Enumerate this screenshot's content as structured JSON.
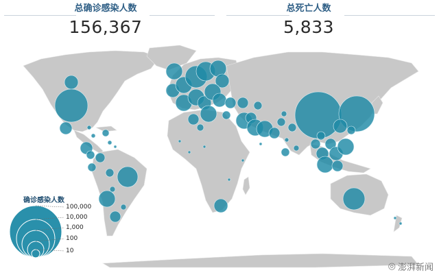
{
  "header": {
    "confirmed_label": "总确诊感染人数",
    "confirmed_value": "156,367",
    "deaths_label": "总死亡人数",
    "deaths_value": "5,833"
  },
  "legend": {
    "title": "确诊感染人数",
    "levels": [
      "100,000",
      "10,000",
      "1,000",
      "100",
      "10"
    ]
  },
  "watermark": {
    "text": "澎湃新闻"
  },
  "colors": {
    "land": "#c8c8c8",
    "bubble": "#1f8aa6",
    "bubble_stroke": "#dff1f6",
    "label": "#2f5f86"
  }
}
